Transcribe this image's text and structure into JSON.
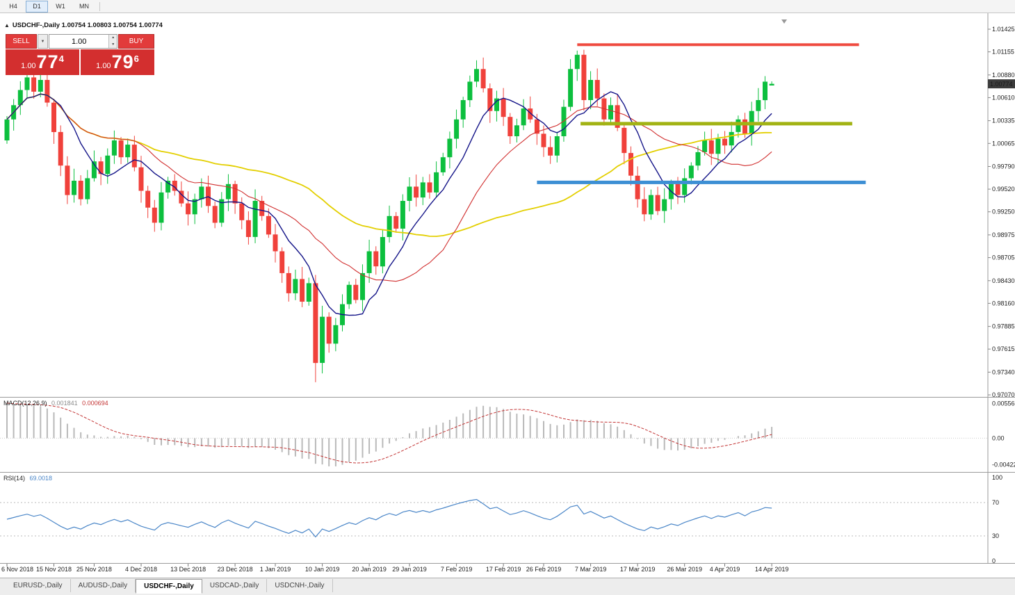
{
  "toolbar": {
    "timeframes": [
      {
        "label": "H4",
        "active": false
      },
      {
        "label": "D1",
        "active": true
      },
      {
        "label": "W1",
        "active": false
      },
      {
        "label": "MN",
        "active": false
      }
    ]
  },
  "chart": {
    "title_text": "USDCHF-,Daily 1.00754 1.00803 1.00754 1.00774",
    "symbol": "USDCHF",
    "period": "Daily",
    "price_axis": {
      "range": {
        "max": 1.01524,
        "min": 0.97054
      },
      "labels": [
        "1.01425",
        "1.01155",
        "1.00880",
        "1.00610",
        "1.00335",
        "1.00065",
        "0.99790",
        "0.99520",
        "0.99250",
        "0.98975",
        "0.98705",
        "0.98430",
        "0.98160",
        "0.97885",
        "0.97615",
        "0.97340",
        "0.97070"
      ],
      "current_price": "1.00774"
    },
    "time_axis": {
      "labels": [
        {
          "text": "6 Nov 2018",
          "i": 0
        },
        {
          "text": "15 Nov 2018",
          "i": 7
        },
        {
          "text": "25 Nov 2018",
          "i": 13
        },
        {
          "text": "4 Dec 2018",
          "i": 20
        },
        {
          "text": "13 Dec 2018",
          "i": 27
        },
        {
          "text": "23 Dec 2018",
          "i": 34
        },
        {
          "text": "1 Jan 2019",
          "i": 40
        },
        {
          "text": "10 Jan 2019",
          "i": 47
        },
        {
          "text": "20 Jan 2019",
          "i": 54
        },
        {
          "text": "29 Jan 2019",
          "i": 60
        },
        {
          "text": "7 Feb 2019",
          "i": 67
        },
        {
          "text": "17 Feb 2019",
          "i": 74
        },
        {
          "text": "26 Feb 2019",
          "i": 80
        },
        {
          "text": "7 Mar 2019",
          "i": 87
        },
        {
          "text": "17 Mar 2019",
          "i": 94
        },
        {
          "text": "26 Mar 2019",
          "i": 101
        },
        {
          "text": "4 Apr 2019",
          "i": 107
        },
        {
          "text": "14 Apr 2019",
          "i": 114
        }
      ]
    },
    "levels": [
      {
        "name": "resistance-line",
        "color": "#ef4b40",
        "price": 1.0124,
        "from": 85,
        "to": 127,
        "thickness": 4
      },
      {
        "name": "breakout-line",
        "color": "#a2b314",
        "price": 1.003,
        "from": 85.5,
        "to": 126,
        "thickness": 5
      },
      {
        "name": "support-line",
        "color": "#3d8fd4",
        "price": 0.996,
        "from": 79,
        "to": 128,
        "thickness": 5
      }
    ],
    "moving_averages": [
      {
        "name": "ma-fast-line",
        "period": 8,
        "color": "#141488"
      },
      {
        "name": "ma-mid-line",
        "period": 20,
        "color": "#d12f2f"
      },
      {
        "name": "ma-slow-line",
        "period": 45,
        "color": "#e3cf00"
      }
    ],
    "colors": {
      "up": "#0cbf3e",
      "down": "#f0413b",
      "price_tag_bg": "#3c3c3c"
    }
  },
  "one_click": {
    "sell_label": "SELL",
    "buy_label": "BUY",
    "volume": "1.00",
    "sell_price": {
      "prefix": "1.00",
      "big": "77",
      "sup": "4"
    },
    "buy_price": {
      "prefix": "1.00",
      "big": "79",
      "sup": "6"
    }
  },
  "chart_data": {
    "type": "candlestick",
    "symbol": "USDCHF",
    "timeframe": "D1",
    "first_open": 1.001,
    "closes": [
      1.0035,
      1.0052,
      1.007,
      1.0085,
      1.0068,
      1.0082,
      1.0055,
      1.002,
      0.998,
      0.9945,
      0.9962,
      0.994,
      0.9965,
      0.9985,
      0.997,
      0.9992,
      1.001,
      0.999,
      1.0005,
      0.9978,
      0.995,
      0.993,
      0.9912,
      0.9948,
      0.9962,
      0.995,
      0.9935,
      0.9922,
      0.994,
      0.9955,
      0.9932,
      0.9912,
      0.994,
      0.9958,
      0.9935,
      0.9915,
      0.9895,
      0.9938,
      0.992,
      0.9898,
      0.9878,
      0.9852,
      0.9828,
      0.9845,
      0.9818,
      0.984,
      0.9745,
      0.98,
      0.9768,
      0.979,
      0.9815,
      0.9838,
      0.982,
      0.9852,
      0.9878,
      0.986,
      0.9895,
      0.992,
      0.9905,
      0.9938,
      0.9955,
      0.9942,
      0.996,
      0.9948,
      0.9972,
      0.999,
      1.0012,
      1.0035,
      1.0058,
      1.008,
      1.0095,
      1.0072,
      1.0045,
      1.006,
      1.0038,
      1.0015,
      1.0028,
      1.0048,
      1.0035,
      1.0018,
      1.0002,
      0.9992,
      1.0015,
      1.005,
      1.0095,
      1.0112,
      1.0058,
      1.0082,
      1.006,
      1.0035,
      1.0052,
      1.0025,
      0.9995,
      0.9968,
      0.994,
      0.9922,
      0.9945,
      0.9926,
      0.994,
      0.9958,
      0.9945,
      0.9965,
      0.998,
      0.9996,
      1.001,
      0.9994,
      1.0012,
      1.0004,
      1.002,
      1.0035,
      1.0018,
      1.0045,
      1.0058,
      1.008,
      1.00774
    ],
    "overrides": {
      "46": {
        "low": 0.9722
      },
      "85": {
        "high": 1.0117
      },
      "86": {
        "high": 1.0118
      },
      "114": {
        "open": 1.00754,
        "high": 1.00803,
        "low": 1.00754
      }
    },
    "last_ohlc": {
      "open": "1.00754",
      "high": "1.00803",
      "low": "1.00754",
      "close": "1.00774"
    }
  },
  "macd_panel": {
    "name": "MACD(12,26,9)",
    "value_main": "0.001841",
    "value_signal": "0.000694",
    "params": {
      "fast": 12,
      "slow": 26,
      "signal": 9
    },
    "range": {
      "max": 0.0057,
      "min": -0.0045
    },
    "axis": [
      {
        "text": "0.00556",
        "v": 0.00556
      },
      {
        "text": "0.00",
        "v": 0
      },
      {
        "text": "-0.00422",
        "v": -0.00422
      }
    ],
    "colors": {
      "histogram": "#b9b9b9",
      "signal": "#c33434"
    }
  },
  "rsi_panel": {
    "name": "RSI(14)",
    "value": "69.0018",
    "period": 14,
    "levels": [
      70,
      30
    ],
    "axis": [
      {
        "text": "100",
        "v": 100
      },
      {
        "text": "70",
        "v": 70
      },
      {
        "text": "30",
        "v": 30
      },
      {
        "text": "0",
        "v": 0
      }
    ],
    "color": "#4a86c8"
  },
  "tabs": [
    {
      "label": "EURUSD-,Daily",
      "active": false
    },
    {
      "label": "AUDUSD-,Daily",
      "active": false
    },
    {
      "label": "USDCHF-,Daily",
      "active": true
    },
    {
      "label": "USDCAD-,Daily",
      "active": false
    },
    {
      "label": "USDCNH-,Daily",
      "active": false
    }
  ]
}
